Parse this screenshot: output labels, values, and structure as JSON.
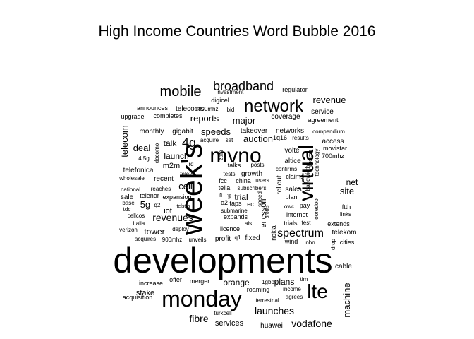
{
  "title": "High Income Countries Word Bubble 2016",
  "words": [
    {
      "text": "developments"
    },
    {
      "text": "week's"
    },
    {
      "text": "mvno"
    },
    {
      "text": "monday"
    },
    {
      "text": "virtual"
    },
    {
      "text": "network"
    },
    {
      "text": "lte"
    },
    {
      "text": "broadband"
    },
    {
      "text": "mobile"
    },
    {
      "text": "spectrum"
    },
    {
      "text": "4g"
    },
    {
      "text": "launches"
    },
    {
      "text": "vodafone"
    },
    {
      "text": "fibre"
    },
    {
      "text": "revenues"
    },
    {
      "text": "machine"
    },
    {
      "text": "revenue"
    },
    {
      "text": "telecom"
    },
    {
      "text": "speeds"
    },
    {
      "text": "reports"
    },
    {
      "text": "major"
    },
    {
      "text": "auction"
    },
    {
      "text": "cell"
    },
    {
      "text": "talk"
    },
    {
      "text": "deal"
    },
    {
      "text": "launch"
    },
    {
      "text": "site"
    },
    {
      "text": "net"
    },
    {
      "text": "5g"
    },
    {
      "text": "tower"
    },
    {
      "text": "iot"
    },
    {
      "text": "m2m"
    },
    {
      "text": "orange"
    },
    {
      "text": "plans"
    },
    {
      "text": "stake"
    },
    {
      "text": "services"
    },
    {
      "text": "telecoms"
    },
    {
      "text": "coverage"
    },
    {
      "text": "service"
    },
    {
      "text": "monthly"
    },
    {
      "text": "gigabit"
    },
    {
      "text": "takeover"
    },
    {
      "text": "networks"
    },
    {
      "text": "ericsson"
    },
    {
      "text": "rollout"
    },
    {
      "text": "volte"
    },
    {
      "text": "altice"
    },
    {
      "text": "sales"
    },
    {
      "text": "growth"
    },
    {
      "text": "trial"
    },
    {
      "text": "nokia"
    },
    {
      "text": "ftth"
    },
    {
      "text": "access"
    },
    {
      "text": "telenor"
    },
    {
      "text": "telefonica"
    },
    {
      "text": "sale"
    },
    {
      "text": "recent"
    },
    {
      "text": "expansion"
    },
    {
      "text": "announces"
    },
    {
      "text": "completes"
    },
    {
      "text": "upgrade"
    },
    {
      "text": "1800mhz"
    },
    {
      "text": "digicel"
    },
    {
      "text": "bid"
    },
    {
      "text": "investment"
    },
    {
      "text": "regulator"
    },
    {
      "text": "agreement"
    },
    {
      "text": "compendium"
    },
    {
      "text": "movistar"
    },
    {
      "text": "700mhz"
    },
    {
      "text": "1q16"
    },
    {
      "text": "results"
    },
    {
      "text": "acquire"
    },
    {
      "text": "set"
    },
    {
      "text": "talks"
    },
    {
      "text": "posts"
    },
    {
      "text": "confirms"
    },
    {
      "text": "claims"
    },
    {
      "text": "plan"
    },
    {
      "text": "pay"
    },
    {
      "text": "owc"
    },
    {
      "text": "internet"
    },
    {
      "text": "test"
    },
    {
      "text": "trials"
    },
    {
      "text": "links"
    },
    {
      "text": "extends"
    },
    {
      "text": "telekom"
    },
    {
      "text": "cities"
    },
    {
      "text": "cable"
    },
    {
      "text": "wind"
    },
    {
      "text": "nbn"
    },
    {
      "text": "drop"
    },
    {
      "text": "fixed"
    },
    {
      "text": "q1"
    },
    {
      "text": "profit"
    },
    {
      "text": "licence"
    },
    {
      "text": "expands"
    },
    {
      "text": "submarine"
    },
    {
      "text": "o2"
    },
    {
      "text": "taps"
    },
    {
      "text": "ec"
    },
    {
      "text": "subscribers"
    },
    {
      "text": "china"
    },
    {
      "text": "telia"
    },
    {
      "text": "fcc"
    },
    {
      "text": "tests"
    },
    {
      "text": "users"
    },
    {
      "text": "fi"
    },
    {
      "text": "wi"
    },
    {
      "text": "zain"
    },
    {
      "text": "tele2"
    },
    {
      "text": "rd"
    },
    {
      "text": "docomo"
    },
    {
      "text": "4.5g"
    },
    {
      "text": "q2"
    },
    {
      "text": "wholesale"
    },
    {
      "text": "national"
    },
    {
      "text": "reaches"
    },
    {
      "text": "telstra"
    },
    {
      "text": "base"
    },
    {
      "text": "tdc"
    },
    {
      "text": "cellcos"
    },
    {
      "text": "italia"
    },
    {
      "text": "verizon"
    },
    {
      "text": "deploy"
    },
    {
      "text": "acquires"
    },
    {
      "text": "900mhz"
    },
    {
      "text": "unveils"
    },
    {
      "text": "ais"
    },
    {
      "text": "speed"
    },
    {
      "text": "profits"
    },
    {
      "text": "ooredoo"
    },
    {
      "text": "bandwidth"
    },
    {
      "text": "wireless"
    },
    {
      "text": "technology"
    },
    {
      "text": "increase"
    },
    {
      "text": "offer"
    },
    {
      "text": "merger"
    },
    {
      "text": "acquisition"
    },
    {
      "text": "1gbps"
    },
    {
      "text": "roaming"
    },
    {
      "text": "income"
    },
    {
      "text": "tim"
    },
    {
      "text": "terrestrial"
    },
    {
      "text": "agrees"
    },
    {
      "text": "turkcell"
    },
    {
      "text": "huawei"
    }
  ]
}
